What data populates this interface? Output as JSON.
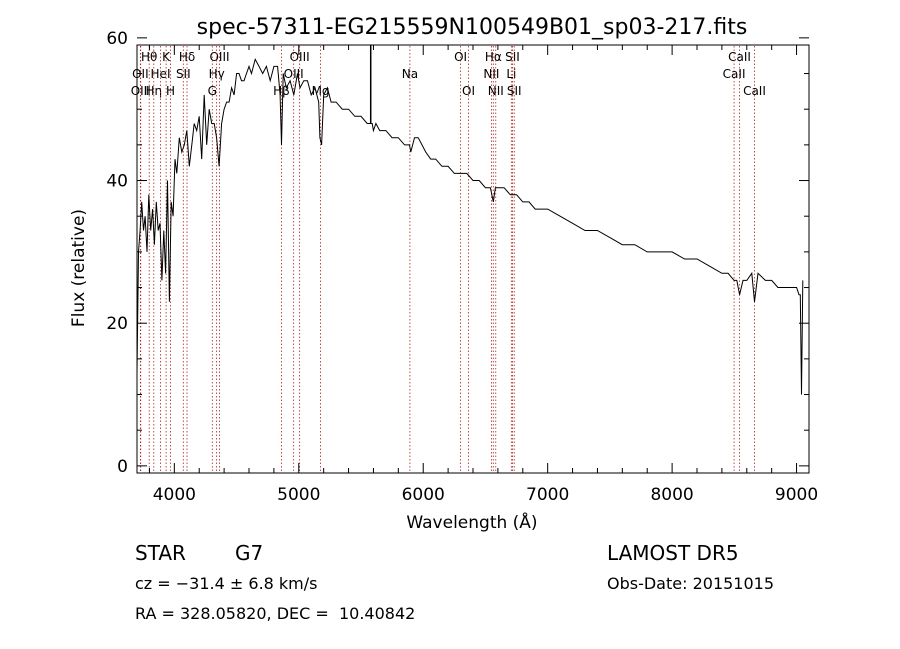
{
  "chart_data": {
    "type": "line",
    "title": "spec-57311-EG215559N100549B01_sp03-217.fits",
    "xlabel": "Wavelength (Å)",
    "ylabel": "Flux (relative)",
    "xlim": [
      3700,
      9100
    ],
    "ylim": [
      -1,
      59
    ],
    "xticks": [
      4000,
      5000,
      6000,
      7000,
      8000,
      9000
    ],
    "yticks": [
      0,
      20,
      40,
      60
    ],
    "grid": false,
    "line_color": "#000000",
    "marker_color": "#b22222",
    "series": [
      {
        "x": [
          3700,
          3712,
          3725,
          3738,
          3752,
          3765,
          3780,
          3795,
          3810,
          3825,
          3840,
          3855,
          3870,
          3885,
          3900,
          3915,
          3930,
          3945,
          3960,
          3975,
          3990,
          4005,
          4020,
          4040,
          4060,
          4080,
          4100,
          4120,
          4140,
          4160,
          4180,
          4200,
          4220,
          4240,
          4260,
          4280,
          4300,
          4320,
          4340,
          4360,
          4380,
          4400,
          4420,
          4440,
          4460,
          4480,
          4500,
          4520,
          4540,
          4560,
          4580,
          4600,
          4620,
          4650,
          4680,
          4710,
          4740,
          4770,
          4800,
          4830,
          4850,
          4861,
          4875,
          4900,
          4930,
          4960,
          4990,
          5010,
          5040,
          5070,
          5100,
          5130,
          5160,
          5170,
          5183,
          5200,
          5230,
          5260,
          5300,
          5350,
          5400,
          5450,
          5500,
          5550,
          5590,
          5600,
          5620,
          5650,
          5700,
          5750,
          5800,
          5850,
          5890,
          5900,
          5930,
          5960,
          5990,
          6020,
          6060,
          6100,
          6150,
          6200,
          6250,
          6300,
          6350,
          6400,
          6450,
          6500,
          6540,
          6563,
          6580,
          6600,
          6650,
          6700,
          6750,
          6800,
          6850,
          6900,
          6950,
          7000,
          7100,
          7200,
          7300,
          7400,
          7500,
          7600,
          7700,
          7800,
          7900,
          8000,
          8100,
          8200,
          8300,
          8400,
          8450,
          8498,
          8520,
          8542,
          8570,
          8600,
          8640,
          8662,
          8690,
          8750,
          8800,
          8850,
          8900,
          8950,
          8980,
          9000,
          9020,
          9030,
          9040,
          9050
        ],
        "y": [
          13,
          30,
          33,
          37,
          33,
          35,
          30,
          38,
          33,
          36,
          31,
          37,
          33,
          34,
          26,
          33,
          27,
          40,
          23,
          37,
          35,
          43,
          41,
          46,
          44,
          45,
          47,
          42,
          45,
          48,
          47,
          49,
          43,
          52,
          45,
          50,
          48,
          48,
          46,
          42,
          48,
          50,
          51,
          51,
          53,
          52,
          55,
          55,
          54,
          54,
          55,
          56,
          55,
          57,
          56,
          55,
          56,
          54,
          56,
          56,
          52,
          45,
          55,
          53,
          54,
          52,
          55,
          53,
          54,
          54,
          52,
          53,
          51,
          46,
          45,
          52,
          53,
          51,
          51,
          50,
          50,
          49,
          49,
          48,
          48,
          47,
          48,
          47,
          47,
          46,
          46,
          45,
          45,
          44,
          46,
          46,
          45,
          44,
          43,
          43,
          42,
          42,
          41,
          41,
          41,
          40,
          40,
          39,
          39,
          37,
          39,
          39,
          39,
          38,
          38,
          37,
          37,
          36,
          36,
          36,
          35,
          34,
          33,
          33,
          32,
          31,
          31,
          30,
          30,
          30,
          29,
          29,
          28,
          27,
          27,
          26,
          26,
          24,
          26,
          26,
          27,
          23,
          27,
          26,
          26,
          25,
          25,
          25,
          25,
          25,
          24,
          24,
          10,
          26
        ]
      }
    ],
    "line_markers": [
      {
        "name": "Hθ",
        "wavelength": 3798,
        "row": 0
      },
      {
        "name": "OII",
        "wavelength": 3727,
        "row": 1
      },
      {
        "name": "OIII",
        "wavelength": 3730,
        "row": 2
      },
      {
        "name": "Hη",
        "wavelength": 3835,
        "row": 2
      },
      {
        "name": "HeI",
        "wavelength": 3889,
        "row": 1
      },
      {
        "name": "K",
        "wavelength": 3934,
        "row": 0
      },
      {
        "name": "H",
        "wavelength": 3969,
        "row": 2
      },
      {
        "name": "Hδ",
        "wavelength": 4102,
        "row": 0
      },
      {
        "name": "SII",
        "wavelength": 4072,
        "row": 1
      },
      {
        "name": "OIII",
        "wavelength": 4363,
        "row": 0
      },
      {
        "name": "Hγ",
        "wavelength": 4340,
        "row": 1
      },
      {
        "name": "G",
        "wavelength": 4305,
        "row": 2
      },
      {
        "name": "Hβ",
        "wavelength": 4861,
        "row": 2
      },
      {
        "name": "OIII",
        "wavelength": 5007,
        "row": 0
      },
      {
        "name": "OIII",
        "wavelength": 4959,
        "row": 1
      },
      {
        "name": "Mg",
        "wavelength": 5175,
        "row": 2
      },
      {
        "name": "Na",
        "wavelength": 5893,
        "row": 1
      },
      {
        "name": "OI",
        "wavelength": 6300,
        "row": 0
      },
      {
        "name": "OI",
        "wavelength": 6364,
        "row": 2
      },
      {
        "name": "Hα",
        "wavelength": 6563,
        "row": 0
      },
      {
        "name": "NII",
        "wavelength": 6548,
        "row": 1
      },
      {
        "name": "NII",
        "wavelength": 6583,
        "row": 2
      },
      {
        "name": "SII",
        "wavelength": 6717,
        "row": 0
      },
      {
        "name": "Li",
        "wavelength": 6708,
        "row": 1
      },
      {
        "name": "SII",
        "wavelength": 6731,
        "row": 2
      },
      {
        "name": "CaII",
        "wavelength": 8542,
        "row": 0
      },
      {
        "name": "CaII",
        "wavelength": 8498,
        "row": 1
      },
      {
        "name": "CaII",
        "wavelength": 8662,
        "row": 2
      }
    ],
    "spike": {
      "x": 5578,
      "y_from": 48,
      "y_to": 72
    }
  },
  "info": {
    "object_class": "STAR",
    "subclass": "G7",
    "survey": "LAMOST DR5",
    "redshift": "cz = −31.4 ± 6.8 km/s",
    "obs_date": "Obs-Date: 20151015",
    "coords": "RA = 328.05820, DEC =  10.40842"
  }
}
